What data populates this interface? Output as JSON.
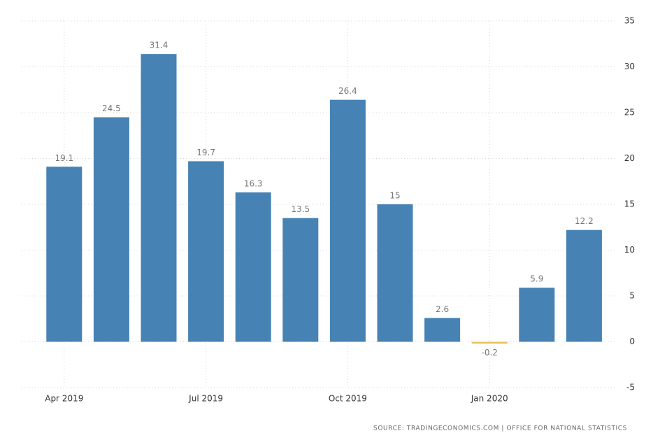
{
  "chart_data": {
    "type": "bar",
    "categories": [
      "Apr 2019",
      null,
      null,
      "Jul 2019",
      null,
      null,
      "Oct 2019",
      null,
      null,
      "Jan 2020",
      null,
      null
    ],
    "values": [
      19.1,
      24.5,
      31.4,
      19.7,
      16.3,
      13.5,
      26.4,
      15,
      2.6,
      -0.2,
      5.9,
      12.2
    ],
    "color": "#4682b4",
    "negative_color": "#e6c35c",
    "ylim": [
      -5,
      35
    ],
    "yticks": [
      -5,
      0,
      5,
      10,
      15,
      20,
      25,
      30,
      35
    ],
    "grid": true,
    "source": "SOURCE: TRADINGECONOMICS.COM | OFFICE FOR NATIONAL STATISTICS"
  }
}
